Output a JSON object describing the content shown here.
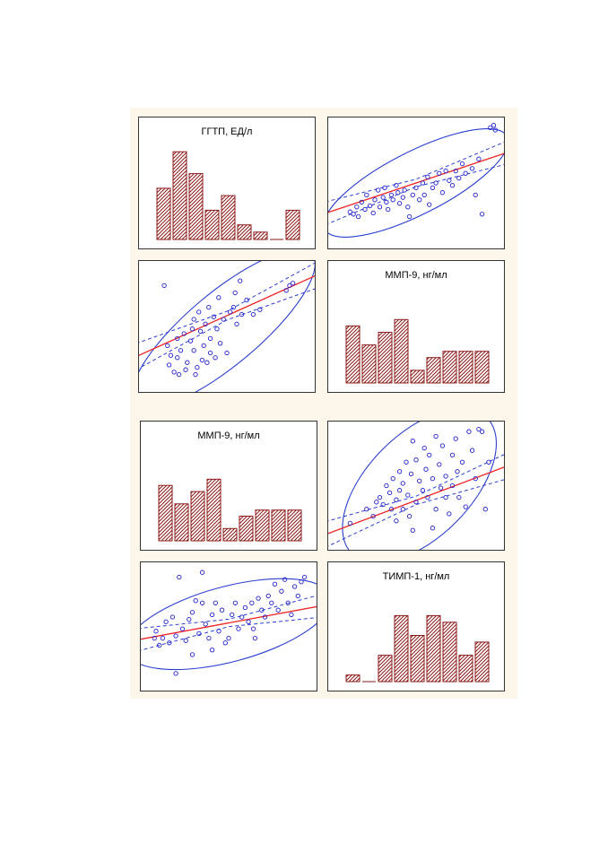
{
  "colors": {
    "bar_fill": "#a52a2a",
    "bar_hatch": "#5a1a1a",
    "points": "#2222cc",
    "ellipse": "#2a3fd0",
    "confidence": "#2a3fd0",
    "regression": "#ee2222",
    "background": "#fdf6ea"
  },
  "chart_data": [
    {
      "id": "top-hist-ggtp",
      "type": "bar",
      "title": "ГГТП, ЕД/л",
      "categories": [
        "1",
        "2",
        "3",
        "4",
        "5",
        "6",
        "7",
        "8",
        "9"
      ],
      "values": [
        7,
        12,
        9,
        4,
        6,
        2,
        1,
        0,
        4
      ],
      "ylim": [
        0,
        13
      ],
      "grid": false
    },
    {
      "id": "top-scatter-ggtp-mmp9",
      "type": "scatter",
      "title": "",
      "xlim": [
        0,
        100
      ],
      "ylim": [
        0,
        100
      ],
      "ellipse": {
        "cx": 50,
        "cy": 50,
        "rx": 62,
        "ry": 26,
        "angle_deg": 27
      },
      "regression": {
        "slope": 0.46,
        "intercept": 27
      },
      "confidence_band": 7,
      "points": [
        [
          10,
          26
        ],
        [
          12,
          24
        ],
        [
          14,
          30
        ],
        [
          15,
          22
        ],
        [
          17,
          34
        ],
        [
          19,
          28
        ],
        [
          20,
          40
        ],
        [
          22,
          31
        ],
        [
          24,
          25
        ],
        [
          25,
          36
        ],
        [
          27,
          44
        ],
        [
          28,
          30
        ],
        [
          30,
          38
        ],
        [
          31,
          46
        ],
        [
          32,
          34
        ],
        [
          33,
          28
        ],
        [
          35,
          40
        ],
        [
          36,
          36
        ],
        [
          38,
          48
        ],
        [
          39,
          42
        ],
        [
          40,
          33
        ],
        [
          42,
          38
        ],
        [
          43,
          44
        ],
        [
          45,
          30
        ],
        [
          46,
          22
        ],
        [
          48,
          40
        ],
        [
          50,
          46
        ],
        [
          52,
          36
        ],
        [
          54,
          50
        ],
        [
          55,
          40
        ],
        [
          57,
          55
        ],
        [
          58,
          32
        ],
        [
          60,
          46
        ],
        [
          62,
          50
        ],
        [
          64,
          58
        ],
        [
          66,
          42
        ],
        [
          68,
          60
        ],
        [
          70,
          52
        ],
        [
          72,
          48
        ],
        [
          74,
          60
        ],
        [
          76,
          54
        ],
        [
          78,
          66
        ],
        [
          80,
          58
        ],
        [
          84,
          62
        ],
        [
          86,
          40
        ],
        [
          88,
          70
        ],
        [
          90,
          24
        ],
        [
          95,
          96
        ],
        [
          97,
          98
        ],
        [
          98,
          94
        ]
      ]
    },
    {
      "id": "top-scatter-mmp9-ggtp",
      "type": "scatter",
      "title": "",
      "xlim": [
        0,
        100
      ],
      "ylim": [
        0,
        100
      ],
      "ellipse": {
        "cx": 48,
        "cy": 48,
        "rx": 70,
        "ry": 30,
        "angle_deg": 40
      },
      "regression": {
        "slope": 0.62,
        "intercept": 28
      },
      "confidence_band": 8,
      "points": [
        [
          12,
          84
        ],
        [
          14,
          34
        ],
        [
          15,
          18
        ],
        [
          16,
          26
        ],
        [
          18,
          12
        ],
        [
          20,
          24
        ],
        [
          20,
          40
        ],
        [
          21,
          10
        ],
        [
          22,
          30
        ],
        [
          24,
          44
        ],
        [
          25,
          14
        ],
        [
          26,
          20
        ],
        [
          28,
          38
        ],
        [
          29,
          48
        ],
        [
          30,
          30
        ],
        [
          30,
          56
        ],
        [
          31,
          10
        ],
        [
          32,
          16
        ],
        [
          33,
          62
        ],
        [
          34,
          46
        ],
        [
          35,
          22
        ],
        [
          36,
          34
        ],
        [
          37,
          52
        ],
        [
          38,
          20
        ],
        [
          39,
          66
        ],
        [
          40,
          40
        ],
        [
          40,
          28
        ],
        [
          42,
          58
        ],
        [
          43,
          24
        ],
        [
          44,
          48
        ],
        [
          45,
          74
        ],
        [
          46,
          36
        ],
        [
          48,
          56
        ],
        [
          50,
          28
        ],
        [
          52,
          62
        ],
        [
          54,
          66
        ],
        [
          55,
          78
        ],
        [
          56,
          52
        ],
        [
          58,
          88
        ],
        [
          59,
          60
        ],
        [
          62,
          72
        ],
        [
          66,
          60
        ],
        [
          70,
          64
        ],
        [
          86,
          80
        ],
        [
          88,
          84
        ],
        [
          90,
          86
        ]
      ]
    },
    {
      "id": "top-hist-mmp9",
      "type": "bar",
      "title": "ММП-9, нг/мл",
      "categories": [
        "1",
        "2",
        "3",
        "4",
        "5",
        "6",
        "7",
        "8",
        "9"
      ],
      "values": [
        9,
        6,
        8,
        10,
        2,
        4,
        5,
        5,
        5
      ],
      "ylim": [
        0,
        15
      ],
      "grid": false
    },
    {
      "id": "bottom-hist-mmp9",
      "type": "bar",
      "title": "ММП-9, нг/мл",
      "categories": [
        "1",
        "2",
        "3",
        "4",
        "5",
        "6",
        "7",
        "8",
        "9"
      ],
      "values": [
        9,
        6,
        8,
        10,
        2,
        4,
        5,
        5,
        5
      ],
      "ylim": [
        0,
        15
      ],
      "grid": false
    },
    {
      "id": "bottom-scatter-mmp9-timp1",
      "type": "scatter",
      "title": "",
      "xlim": [
        0,
        100
      ],
      "ylim": [
        0,
        100
      ],
      "ellipse": {
        "cx": 52,
        "cy": 50,
        "rx": 58,
        "ry": 44,
        "angle_deg": 45
      },
      "regression": {
        "slope": 0.53,
        "intercept": 11
      },
      "confidence_band": 8,
      "points": [
        [
          10,
          18
        ],
        [
          20,
          30
        ],
        [
          24,
          24
        ],
        [
          26,
          36
        ],
        [
          28,
          40
        ],
        [
          30,
          34
        ],
        [
          32,
          50
        ],
        [
          34,
          44
        ],
        [
          35,
          30
        ],
        [
          36,
          56
        ],
        [
          38,
          20
        ],
        [
          38,
          38
        ],
        [
          40,
          62
        ],
        [
          40,
          46
        ],
        [
          42,
          30
        ],
        [
          42,
          52
        ],
        [
          44,
          70
        ],
        [
          45,
          42
        ],
        [
          46,
          24
        ],
        [
          47,
          60
        ],
        [
          48,
          88
        ],
        [
          48,
          12
        ],
        [
          50,
          72
        ],
        [
          50,
          36
        ],
        [
          52,
          54
        ],
        [
          54,
          46
        ],
        [
          55,
          82
        ],
        [
          56,
          64
        ],
        [
          57,
          40
        ],
        [
          58,
          76
        ],
        [
          60,
          14
        ],
        [
          60,
          56
        ],
        [
          62,
          92
        ],
        [
          62,
          30
        ],
        [
          64,
          68
        ],
        [
          65,
          48
        ],
        [
          66,
          84
        ],
        [
          68,
          58
        ],
        [
          68,
          40
        ],
        [
          70,
          26
        ],
        [
          72,
          76
        ],
        [
          72,
          50
        ],
        [
          74,
          90
        ],
        [
          75,
          62
        ],
        [
          76,
          40
        ],
        [
          78,
          70
        ],
        [
          80,
          32
        ],
        [
          82,
          96
        ],
        [
          84,
          80
        ],
        [
          86,
          56
        ],
        [
          88,
          98
        ],
        [
          90,
          96
        ],
        [
          92,
          30
        ],
        [
          94,
          70
        ]
      ]
    },
    {
      "id": "bottom-scatter-timp1-mmp9",
      "type": "scatter",
      "title": "",
      "xlim": [
        0,
        100
      ],
      "ylim": [
        0,
        100
      ],
      "ellipse": {
        "cx": 50,
        "cy": 52,
        "rx": 64,
        "ry": 32,
        "angle_deg": 15
      },
      "regression": {
        "slope": 0.26,
        "intercept": 40
      },
      "confidence_band": 7,
      "points": [
        [
          5,
          40
        ],
        [
          6,
          46
        ],
        [
          8,
          34
        ],
        [
          10,
          40
        ],
        [
          12,
          54
        ],
        [
          14,
          36
        ],
        [
          16,
          58
        ],
        [
          18,
          42
        ],
        [
          20,
          92
        ],
        [
          22,
          48
        ],
        [
          24,
          38
        ],
        [
          26,
          56
        ],
        [
          28,
          62
        ],
        [
          28,
          26
        ],
        [
          30,
          72
        ],
        [
          32,
          44
        ],
        [
          34,
          70
        ],
        [
          34,
          96
        ],
        [
          36,
          52
        ],
        [
          38,
          40
        ],
        [
          40,
          60
        ],
        [
          40,
          30
        ],
        [
          42,
          70
        ],
        [
          44,
          46
        ],
        [
          46,
          64
        ],
        [
          48,
          36
        ],
        [
          50,
          40
        ],
        [
          52,
          60
        ],
        [
          54,
          70
        ],
        [
          56,
          48
        ],
        [
          58,
          58
        ],
        [
          60,
          66
        ],
        [
          62,
          54
        ],
        [
          64,
          70
        ],
        [
          65,
          48
        ],
        [
          66,
          40
        ],
        [
          68,
          74
        ],
        [
          70,
          64
        ],
        [
          72,
          58
        ],
        [
          74,
          76
        ],
        [
          76,
          70
        ],
        [
          78,
          86
        ],
        [
          80,
          64
        ],
        [
          82,
          80
        ],
        [
          84,
          90
        ],
        [
          86,
          70
        ],
        [
          88,
          60
        ],
        [
          90,
          84
        ],
        [
          92,
          76
        ],
        [
          94,
          88
        ],
        [
          96,
          92
        ],
        [
          18,
          10
        ]
      ]
    },
    {
      "id": "bottom-hist-timp1",
      "type": "bar",
      "title": "ТИМП-1, нг/мл",
      "categories": [
        "1",
        "2",
        "3",
        "4",
        "5",
        "6",
        "7",
        "8",
        "9"
      ],
      "values": [
        1,
        0,
        4,
        10,
        7,
        10,
        9,
        4,
        6
      ],
      "ylim": [
        0,
        14
      ],
      "grid": false
    }
  ]
}
